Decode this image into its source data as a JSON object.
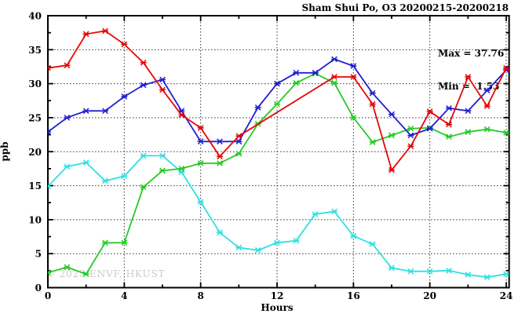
{
  "title": "Sham Shui Po, O3 20200215-20200218",
  "annotations": {
    "max_label": "Max = 37.76",
    "min_label": "Min =  1.53"
  },
  "watermark": "© 2025 ENVF, HKUST",
  "chart_data": {
    "type": "line",
    "title": "Sham Shui Po, O3 20200215-20200218",
    "xlabel": "Hours",
    "ylabel": "ppb",
    "xlim": [
      0,
      24
    ],
    "ylim": [
      0,
      40
    ],
    "x_major_ticks": [
      0,
      4,
      8,
      12,
      16,
      20,
      24
    ],
    "x_minor_ticks": [
      2,
      6,
      10,
      14,
      18,
      22
    ],
    "y_major_ticks": [
      0,
      5,
      10,
      15,
      20,
      25,
      30,
      35,
      40
    ],
    "y_minor_ticks": [
      2.5,
      7.5,
      12.5,
      17.5,
      22.5,
      27.5,
      32.5,
      37.5
    ],
    "grid": true,
    "legend_position": "none",
    "max_value": 37.76,
    "min_value": 1.53,
    "marker": "x-cross",
    "series": [
      {
        "name": "day-20200218-cyan",
        "color": "#2ee0e0",
        "points": [
          [
            0,
            14.9
          ],
          [
            1,
            17.8
          ],
          [
            2,
            18.4
          ],
          [
            3,
            15.7
          ],
          [
            4,
            16.4
          ],
          [
            5,
            19.4
          ],
          [
            6,
            19.4
          ],
          [
            7,
            17.0
          ],
          [
            8,
            12.6
          ],
          [
            9,
            8.1
          ],
          [
            10,
            5.9
          ],
          [
            11,
            5.5
          ],
          [
            12,
            6.6
          ],
          [
            13,
            6.9
          ],
          [
            14,
            10.8
          ],
          [
            15,
            11.2
          ],
          [
            16,
            7.6
          ],
          [
            17,
            6.4
          ],
          [
            18,
            2.9
          ],
          [
            19,
            2.4
          ],
          [
            20,
            2.4
          ],
          [
            21,
            2.5
          ],
          [
            22,
            1.9
          ],
          [
            23,
            1.53
          ],
          [
            24,
            2.0
          ]
        ]
      },
      {
        "name": "day-20200217-green",
        "color": "#24ca24",
        "points": [
          [
            0,
            2.2
          ],
          [
            1,
            3.0
          ],
          [
            2,
            2.0
          ],
          [
            3,
            6.6
          ],
          [
            4,
            6.6
          ],
          [
            5,
            14.8
          ],
          [
            6,
            17.2
          ],
          [
            7,
            17.5
          ],
          [
            8,
            18.3
          ],
          [
            9,
            18.3
          ],
          [
            10,
            19.7
          ],
          [
            11,
            24.1
          ],
          [
            12,
            27.0
          ],
          [
            13,
            30.1
          ],
          [
            14,
            31.5
          ],
          [
            15,
            30.1
          ],
          [
            16,
            25.0
          ],
          [
            17,
            21.4
          ],
          [
            18,
            22.4
          ],
          [
            19,
            23.4
          ],
          [
            20,
            23.5
          ],
          [
            21,
            22.2
          ],
          [
            22,
            22.9
          ],
          [
            23,
            23.3
          ],
          [
            24,
            22.8
          ]
        ]
      },
      {
        "name": "day-20200216-blue",
        "color": "#1f1fd2",
        "points": [
          [
            0,
            22.9
          ],
          [
            1,
            25.0
          ],
          [
            2,
            26.0
          ],
          [
            3,
            26.0
          ],
          [
            4,
            28.1
          ],
          [
            5,
            29.8
          ],
          [
            6,
            30.6
          ],
          [
            7,
            26.0
          ],
          [
            8,
            21.5
          ],
          [
            9,
            21.5
          ],
          [
            10,
            21.5
          ],
          [
            11,
            26.5
          ],
          [
            12,
            30.0
          ],
          [
            13,
            31.6
          ],
          [
            14,
            31.6
          ],
          [
            15,
            33.6
          ],
          [
            16,
            32.6
          ],
          [
            17,
            28.6
          ],
          [
            18,
            25.5
          ],
          [
            19,
            22.4
          ],
          [
            20,
            23.4
          ],
          [
            21,
            26.4
          ],
          [
            22,
            26.0
          ],
          [
            23,
            29.0
          ],
          [
            24,
            32.0
          ]
        ]
      },
      {
        "name": "day-20200215-red",
        "color": "#e60505",
        "points": [
          [
            0,
            32.3
          ],
          [
            1,
            32.7
          ],
          [
            2,
            37.3
          ],
          [
            3,
            37.76
          ],
          [
            4,
            35.8
          ],
          [
            5,
            33.1
          ],
          [
            6,
            29.1
          ],
          [
            7,
            25.4
          ],
          [
            8,
            23.5
          ],
          [
            9,
            19.3
          ],
          [
            10,
            22.3
          ],
          [
            15,
            31.0
          ],
          [
            16,
            31.0
          ],
          [
            17,
            27.0
          ],
          [
            18,
            17.3
          ],
          [
            19,
            20.8
          ],
          [
            20,
            25.9
          ],
          [
            21,
            24.0
          ],
          [
            22,
            31.0
          ],
          [
            23,
            26.7
          ],
          [
            24,
            32.3
          ]
        ]
      }
    ]
  }
}
